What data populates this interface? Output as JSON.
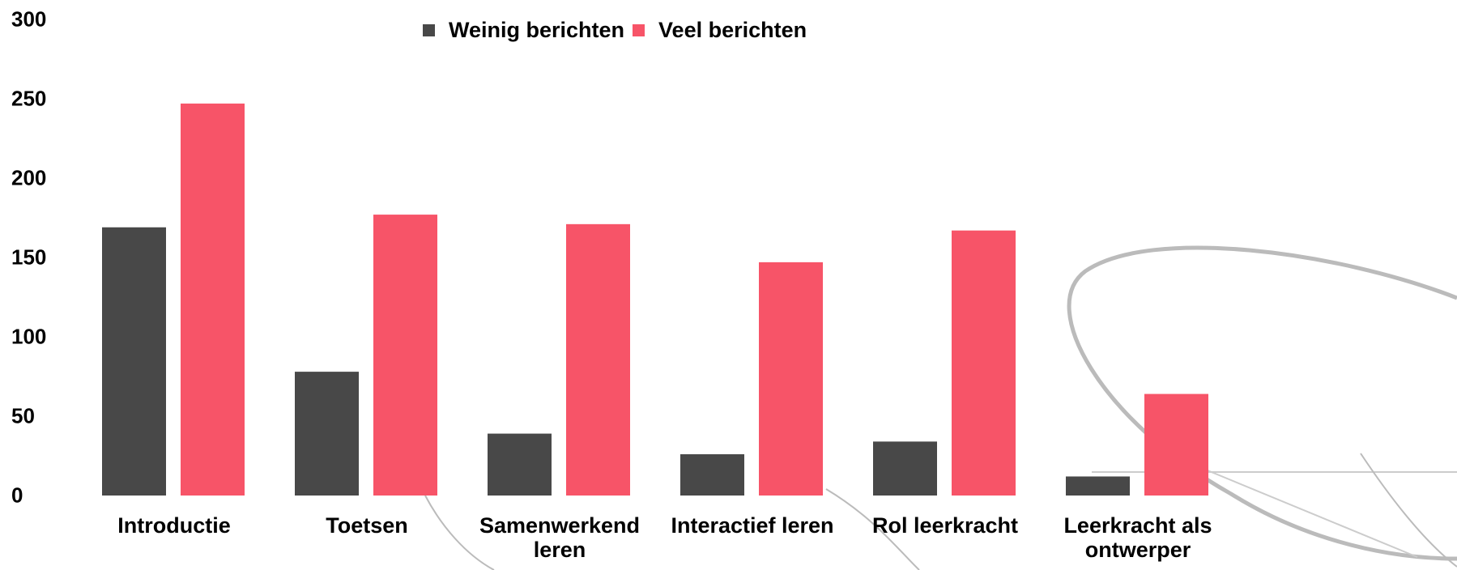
{
  "chart_data": {
    "type": "bar",
    "categories": [
      "Introductie",
      "Toetsen",
      "Samenwerkend leren",
      "Interactief leren",
      "Rol leerkracht",
      "Leerkracht als ontwerper"
    ],
    "series": [
      {
        "name": "Weinig berichten",
        "color": "#484848",
        "values": [
          169,
          78,
          39,
          26,
          34,
          12
        ]
      },
      {
        "name": "Veel berichten",
        "color": "#f75468",
        "values": [
          247,
          177,
          171,
          147,
          167,
          64
        ]
      }
    ],
    "ylim": [
      0,
      300
    ],
    "yticks": [
      0,
      50,
      100,
      150,
      200,
      250,
      300
    ],
    "grid": false,
    "legend": "top"
  }
}
